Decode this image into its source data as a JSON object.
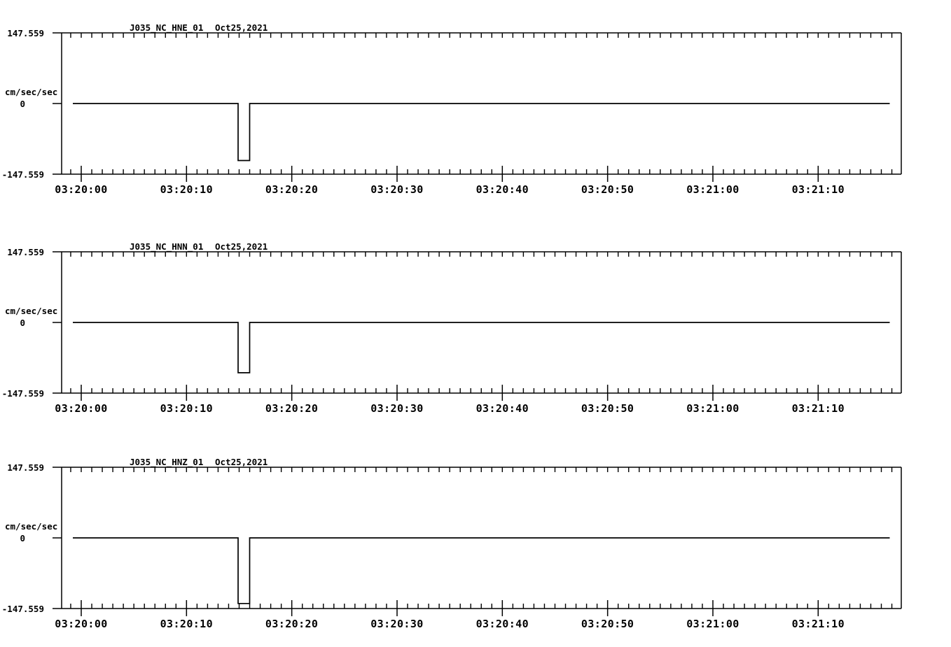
{
  "page": {
    "background_color": "#ffffff",
    "foreground_color": "#000000",
    "description_labels": {
      "station_channel_titles": [
        "J035_NC_HNE_01",
        "J035_NC_HNN_01",
        "J035_NC_HNZ_01"
      ],
      "date_label": "Oct25,2021",
      "units_label": "cm/sec/sec"
    }
  },
  "chart_data": [
    {
      "type": "line",
      "panel": "top",
      "title": "J035_NC_HNE_01",
      "date": "Oct25,2021",
      "ylabel": "cm/sec/sec",
      "y_axis": {
        "max_label": "147.559",
        "zero_label": "0",
        "min_label": "-147.559",
        "ylim": [
          -147.559,
          147.559
        ]
      },
      "x_axis": {
        "start_s": -1.86,
        "end_s": 77.9,
        "minor_tick_interval_s": 1,
        "major_ticks": [
          {
            "label": "03:20:00",
            "s": 0
          },
          {
            "label": "03:20:10",
            "s": 10
          },
          {
            "label": "03:20:20",
            "s": 20
          },
          {
            "label": "03:20:30",
            "s": 30
          },
          {
            "label": "03:20:40",
            "s": 40
          },
          {
            "label": "03:20:50",
            "s": 50
          },
          {
            "label": "03:21:00",
            "s": 60
          },
          {
            "label": "03:21:10",
            "s": 70
          }
        ]
      },
      "trace_points_s_value": [
        [
          -0.8,
          0
        ],
        [
          14.9,
          0
        ],
        [
          14.9,
          -119
        ],
        [
          16.0,
          -119
        ],
        [
          16.0,
          0
        ],
        [
          76.8,
          0
        ]
      ]
    },
    {
      "type": "line",
      "panel": "middle",
      "title": "J035_NC_HNN_01",
      "date": "Oct25,2021",
      "ylabel": "cm/sec/sec",
      "y_axis": {
        "max_label": "147.559",
        "zero_label": "0",
        "min_label": "-147.559",
        "ylim": [
          -147.559,
          147.559
        ]
      },
      "x_axis": {
        "start_s": -1.86,
        "end_s": 77.9,
        "minor_tick_interval_s": 1,
        "major_ticks": [
          {
            "label": "03:20:00",
            "s": 0
          },
          {
            "label": "03:20:10",
            "s": 10
          },
          {
            "label": "03:20:20",
            "s": 20
          },
          {
            "label": "03:20:30",
            "s": 30
          },
          {
            "label": "03:20:40",
            "s": 40
          },
          {
            "label": "03:20:50",
            "s": 50
          },
          {
            "label": "03:21:00",
            "s": 60
          },
          {
            "label": "03:21:10",
            "s": 70
          }
        ]
      },
      "trace_points_s_value": [
        [
          -0.8,
          0
        ],
        [
          14.9,
          0
        ],
        [
          14.9,
          -105
        ],
        [
          16.0,
          -105
        ],
        [
          16.0,
          0
        ],
        [
          76.8,
          0
        ]
      ]
    },
    {
      "type": "line",
      "panel": "bottom",
      "title": "J035_NC_HNZ_01",
      "date": "Oct25,2021",
      "ylabel": "cm/sec/sec",
      "y_axis": {
        "max_label": "147.559",
        "zero_label": "0",
        "min_label": "-147.559",
        "ylim": [
          -147.559,
          147.559
        ]
      },
      "x_axis": {
        "start_s": -1.86,
        "end_s": 77.9,
        "minor_tick_interval_s": 1,
        "major_ticks": [
          {
            "label": "03:20:00",
            "s": 0
          },
          {
            "label": "03:20:10",
            "s": 10
          },
          {
            "label": "03:20:20",
            "s": 20
          },
          {
            "label": "03:20:30",
            "s": 30
          },
          {
            "label": "03:20:40",
            "s": 40
          },
          {
            "label": "03:20:50",
            "s": 50
          },
          {
            "label": "03:21:00",
            "s": 60
          },
          {
            "label": "03:21:10",
            "s": 70
          }
        ]
      },
      "trace_points_s_value": [
        [
          -0.8,
          0
        ],
        [
          14.9,
          0
        ],
        [
          14.9,
          -137
        ],
        [
          16.0,
          -137
        ],
        [
          16.0,
          0
        ],
        [
          76.8,
          0
        ]
      ]
    }
  ]
}
